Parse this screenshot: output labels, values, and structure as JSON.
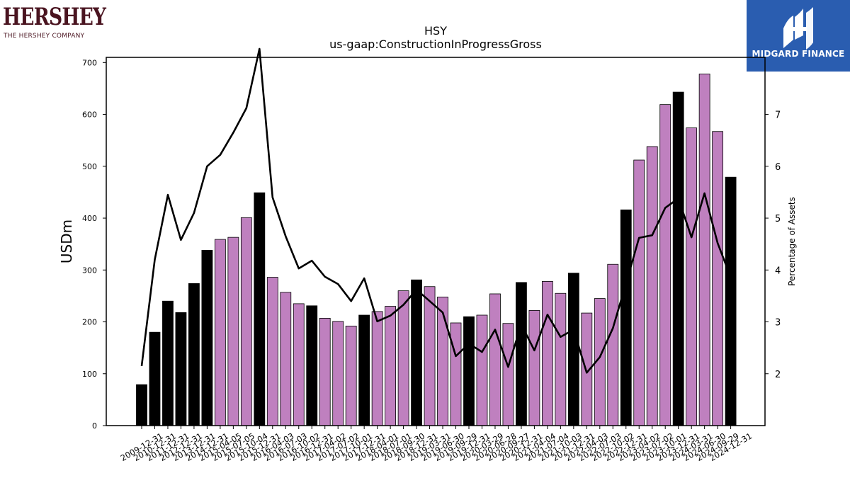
{
  "header": {
    "left_logo": {
      "word": "HERSHEY",
      "tagline": "THE HERSHEY COMPANY",
      "color": "#4a1420"
    },
    "right_logo": {
      "brand": "MIDGARD FINANCE",
      "background": "#2a5db0"
    }
  },
  "chart_data": {
    "type": "bar",
    "title": "HSY",
    "subtitle": "us-gaap:ConstructionInProgressGross",
    "ylabel": "USDm",
    "y2label": "Percentage of Assets",
    "ylim": [
      0,
      710
    ],
    "y2lim": [
      1.0,
      8.1
    ],
    "yticks": [
      0,
      100,
      200,
      300,
      400,
      500,
      600,
      700
    ],
    "y2ticks": [
      2,
      3,
      4,
      5,
      6,
      7
    ],
    "colors": {
      "annual": "#000000",
      "quarterly": "#bf80bf",
      "line": "#000000"
    },
    "categories": [
      "2009-12-31",
      "2010-12-31",
      "2011-12-31",
      "2012-12-31",
      "2013-12-31",
      "2014-12-31",
      "2015-04-05",
      "2015-07-05",
      "2015-10-04",
      "2015-12-31",
      "2016-04-03",
      "2016-07-03",
      "2016-10-02",
      "2016-12-31",
      "2017-04-02",
      "2017-07-02",
      "2017-10-01",
      "2017-12-31",
      "2018-04-01",
      "2018-07-01",
      "2018-09-30",
      "2018-12-31",
      "2019-03-31",
      "2019-06-30",
      "2019-09-29",
      "2019-12-31",
      "2020-03-29",
      "2020-06-28",
      "2020-09-27",
      "2020-12-31",
      "2021-04-04",
      "2021-07-04",
      "2021-10-03",
      "2021-12-31",
      "2022-04-03",
      "2022-07-03",
      "2022-10-02",
      "2022-12-31",
      "2023-04-02",
      "2023-07-02",
      "2023-10-01",
      "2023-12-31",
      "2024-03-31",
      "2024-06-30",
      "2024-09-29",
      "2024-12-31"
    ],
    "series": [
      {
        "kind": "bar",
        "values": [
          79,
          180,
          240,
          218,
          274,
          338,
          359,
          363,
          401,
          449,
          286,
          257,
          235,
          231,
          207,
          201,
          192,
          213,
          220,
          230,
          260,
          281,
          268,
          248,
          198,
          210,
          213,
          254,
          197,
          276,
          222,
          278,
          255,
          294,
          217,
          245,
          311,
          416,
          512,
          538,
          619,
          643,
          574,
          678,
          567,
          479
        ],
        "annual": [
          true,
          true,
          true,
          true,
          true,
          true,
          false,
          false,
          false,
          true,
          false,
          false,
          false,
          true,
          false,
          false,
          false,
          true,
          false,
          false,
          false,
          true,
          false,
          false,
          false,
          true,
          false,
          false,
          false,
          true,
          false,
          false,
          false,
          true,
          false,
          false,
          false,
          true,
          false,
          false,
          false,
          true,
          false,
          false,
          false,
          true
        ]
      },
      {
        "kind": "line",
        "axis": "right",
        "values": [
          2.15,
          4.2,
          5.45,
          4.58,
          5.1,
          6.0,
          6.22,
          6.65,
          7.12,
          8.3,
          5.4,
          4.65,
          4.03,
          4.18,
          3.87,
          3.73,
          3.4,
          3.84,
          3.01,
          3.12,
          3.33,
          3.62,
          3.4,
          3.18,
          2.34,
          2.58,
          2.42,
          2.85,
          2.13,
          2.95,
          2.45,
          3.14,
          2.71,
          2.85,
          2.02,
          2.32,
          2.88,
          3.74,
          4.62,
          4.67,
          5.2,
          5.38,
          4.63,
          5.48,
          4.52,
          3.86
        ]
      }
    ]
  }
}
